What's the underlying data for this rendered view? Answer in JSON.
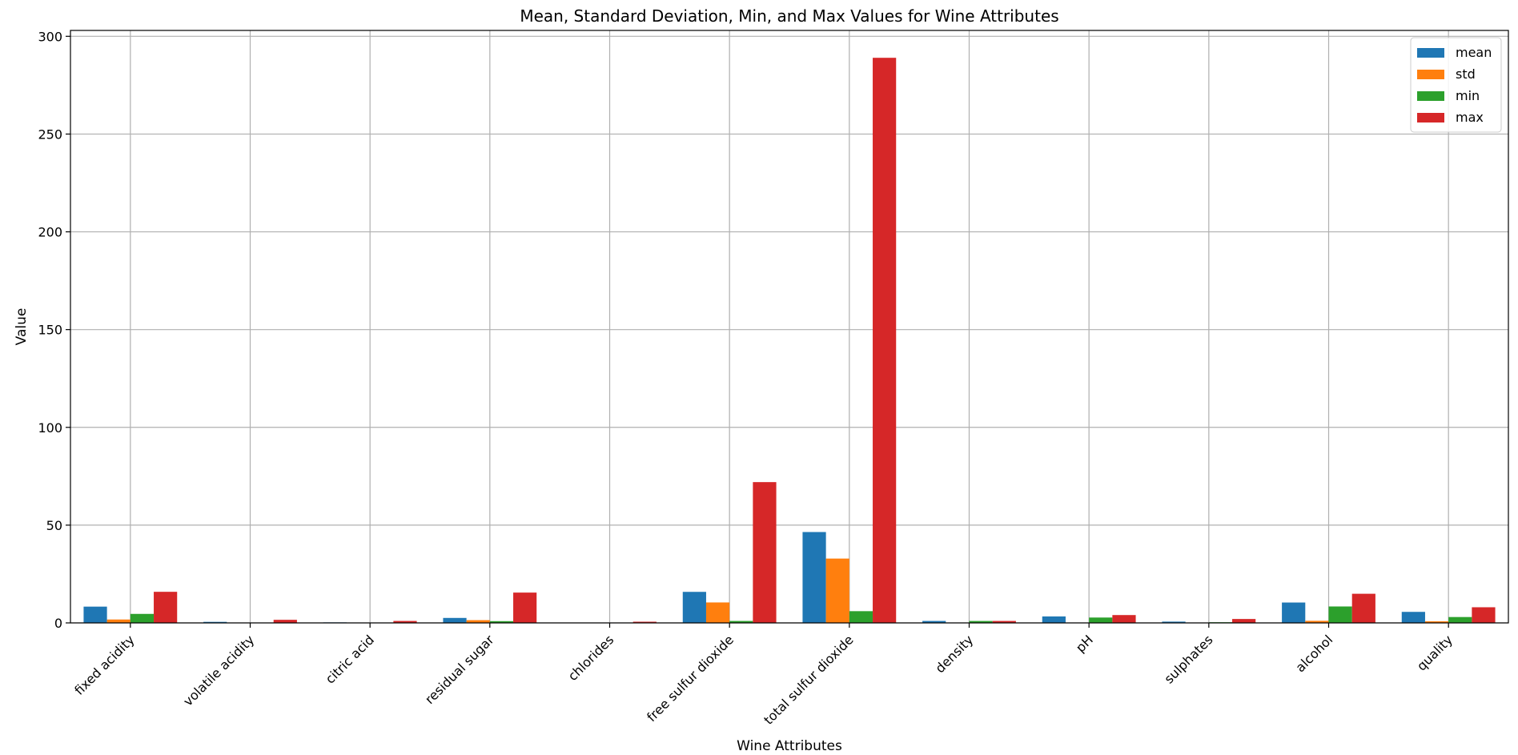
{
  "chart_data": {
    "type": "bar",
    "title": "Mean, Standard Deviation, Min, and Max Values for Wine Attributes",
    "xlabel": "Wine Attributes",
    "ylabel": "Value",
    "ylim": [
      0,
      303
    ],
    "yticks": [
      0,
      50,
      100,
      150,
      200,
      250,
      300
    ],
    "grid": true,
    "legend_position": "top-right",
    "categories": [
      "fixed acidity",
      "volatile acidity",
      "citric acid",
      "residual sugar",
      "chlorides",
      "free sulfur dioxide",
      "total sulfur dioxide",
      "density",
      "pH",
      "sulphates",
      "alcohol",
      "quality"
    ],
    "series": [
      {
        "name": "mean",
        "color": "#1f77b4",
        "values": [
          8.32,
          0.53,
          0.27,
          2.54,
          0.09,
          15.87,
          46.47,
          1.0,
          3.31,
          0.66,
          10.42,
          5.64
        ]
      },
      {
        "name": "std",
        "color": "#ff7f0e",
        "values": [
          1.74,
          0.18,
          0.19,
          1.41,
          0.05,
          10.46,
          32.9,
          0.0,
          0.15,
          0.17,
          1.07,
          0.81
        ]
      },
      {
        "name": "min",
        "color": "#2ca02c",
        "values": [
          4.6,
          0.12,
          0.0,
          0.9,
          0.01,
          1.0,
          6.0,
          0.99,
          2.74,
          0.33,
          8.4,
          3.0
        ]
      },
      {
        "name": "max",
        "color": "#d62728",
        "values": [
          15.9,
          1.58,
          1.0,
          15.5,
          0.61,
          72.0,
          289.0,
          1.0,
          4.01,
          2.0,
          14.9,
          8.0
        ]
      }
    ]
  }
}
